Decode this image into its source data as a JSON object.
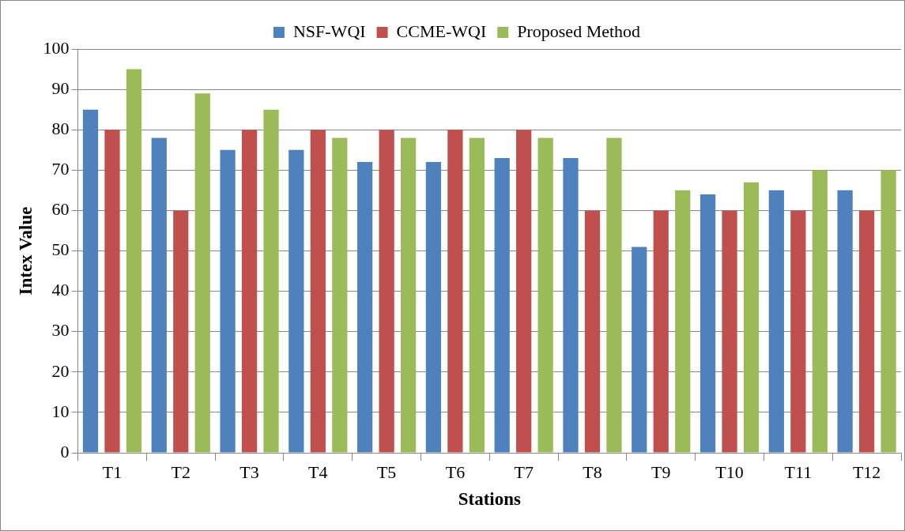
{
  "chart_data": {
    "type": "bar",
    "xlabel": "Stations",
    "ylabel": "Intex Value",
    "categories": [
      "T1",
      "T2",
      "T3",
      "T4",
      "T5",
      "T6",
      "T7",
      "T8",
      "T9",
      "T10",
      "T11",
      "T12"
    ],
    "series": [
      {
        "name": "NSF-WQI",
        "color": "#4f81bd",
        "values": [
          85,
          78,
          75,
          75,
          72,
          72,
          73,
          73,
          51,
          64,
          65,
          65
        ]
      },
      {
        "name": "CCME-WQI",
        "color": "#c0504d",
        "values": [
          80,
          60,
          80,
          80,
          80,
          80,
          80,
          60,
          60,
          60,
          60,
          60
        ]
      },
      {
        "name": "Proposed Method",
        "color": "#9bbb59",
        "values": [
          95,
          89,
          85,
          78,
          78,
          78,
          78,
          78,
          65,
          67,
          70,
          70
        ]
      }
    ],
    "ylim": [
      0,
      100
    ],
    "yticks": [
      0,
      10,
      20,
      30,
      40,
      50,
      60,
      70,
      80,
      90,
      100
    ],
    "grid": "y",
    "legend": "top"
  }
}
